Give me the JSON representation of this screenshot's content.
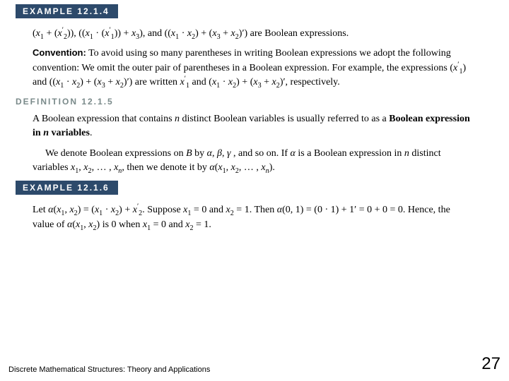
{
  "badge1": "EXAMPLE 12.1.4",
  "expr_line": "(x₁ + (x₂′)), ((x₁ · (x₁′)) + x₃), and ((x₁ · x₂) + (x₃ + x₂)′) are Boolean expressions.",
  "convention_label": "Convention:",
  "convention_text": "To avoid using so many parentheses in writing Boolean expressions we adopt the following convention: We omit the outer pair of parentheses in a Boolean expression. For example, the expressions (x₁′) and ((x₁ · x₂) + (x₃ + x₂)′) are written x₁′ and (x₁ · x₂) + (x₃ + x₂)′, respectively.",
  "def_heading": "DEFINITION 12.1.5",
  "def_text_a": "A Boolean expression that contains ",
  "def_text_b": " distinct Boolean variables is usually referred to as a ",
  "def_text_c": "Boolean expression in ",
  "def_text_d": " variables",
  "denote_a": "We denote Boolean expressions on ",
  "denote_b": " by α, β, γ , and so on. If α is a Boolean expression in ",
  "denote_c": " distinct variables x₁, x₂, … , xₙ, then we denote it by α(x₁, x₂, … , xₙ).",
  "badge2": "EXAMPLE 12.1.6",
  "ex6_text": "Let α(x₁, x₂) = (x₁ · x₂) + x₂′. Suppose x₁ = 0 and x₂ = 1. Then α(0, 1) = (0 · 1) + 1′ = 0 + 0 = 0. Hence, the value of α(x₁, x₂) is 0 when x₁ = 0 and x₂ = 1.",
  "footer": "Discrete Mathematical Structures: Theory and Applications",
  "page": "27",
  "colors": {
    "badge_bg": "#2d4a6b",
    "def_color": "#7a8a8a",
    "text": "#000000",
    "bg": "#ffffff"
  },
  "fonts": {
    "body_family": "Georgia/Times",
    "heading_family": "Verdana",
    "body_size_pt": 11,
    "badge_size_pt": 9,
    "page_num_size_pt": 18
  }
}
